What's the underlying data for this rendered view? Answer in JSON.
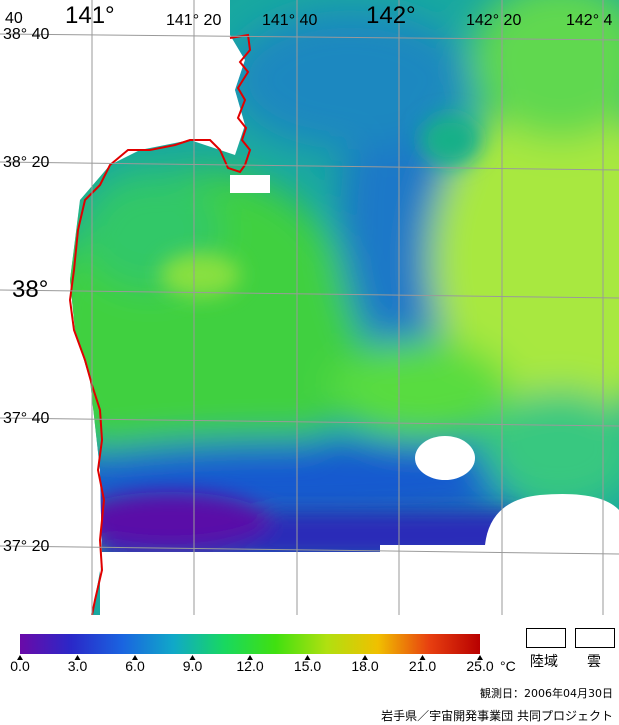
{
  "map": {
    "longitude_labels": [
      "141°",
      "141° 20",
      "141° 40",
      "142°",
      "142° 20",
      "142° 4"
    ],
    "longitude_prefix": "40",
    "latitude_labels": [
      "38° 40",
      "38° 20",
      "38°",
      "37° 40",
      "37° 20"
    ],
    "colors": {
      "land": "#ffffff",
      "coast": "#e00000",
      "grid": "#9a9a9a"
    }
  },
  "colorbar": {
    "ticks": [
      "0.0",
      "3.0",
      "6.0",
      "9.0",
      "12.0",
      "15.0",
      "18.0",
      "21.0",
      "25.0"
    ],
    "unit": "°C",
    "range": [
      0,
      25
    ],
    "colors": [
      "#6a0aa8",
      "#2a28c8",
      "#1a64e0",
      "#10a8c8",
      "#18d860",
      "#40e010",
      "#b0e010",
      "#f0c000",
      "#e84010",
      "#b80000"
    ]
  },
  "legend": {
    "land_label": "陸域",
    "cloud_label": "雲"
  },
  "footer": {
    "observation_date": "観測日：2006年04月30日",
    "credit": "岩手県／宇宙開発事業団 共同プロジェクト"
  }
}
